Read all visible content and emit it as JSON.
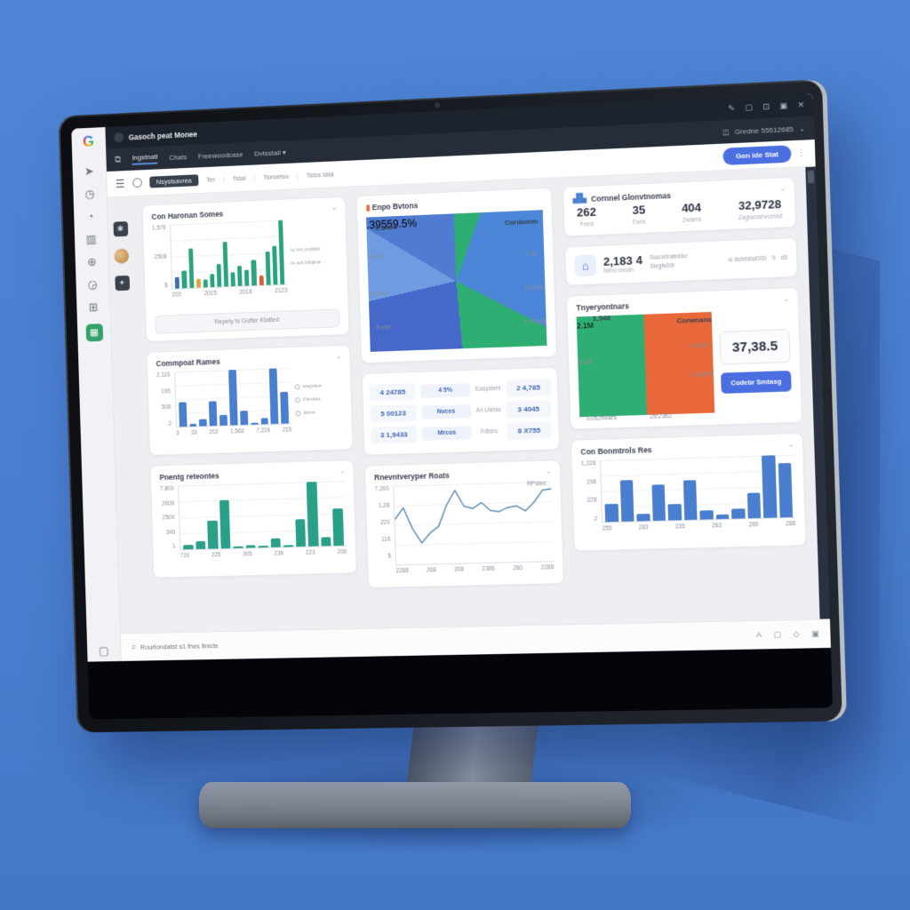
{
  "window": {
    "controls": [
      "✎",
      "▢",
      "⊡",
      "▣",
      "✕"
    ]
  },
  "browser": {
    "tab_title": "Gasoch peat Monee",
    "menu": {
      "items": [
        "Ingstnatl",
        "Chats",
        "Freewoodcase",
        "Dvtsstall ▾"
      ],
      "profile": "Gredne 55512685",
      "profile_icon": "◫"
    },
    "toolbar": {
      "breadcrumb": "Nsystsavrea",
      "links": [
        "Ter",
        "Tstal",
        "Tsesetsu",
        "Tstss tata"
      ],
      "start_button": "Gon ide Stat"
    }
  },
  "colors": {
    "background_blue": "#4a7fd0",
    "accent_blue": "#4a7fd0",
    "teal_green": "#2aa37f",
    "orange": "#e8683a",
    "yellow": "#d8a83f",
    "button_blue": "#4b6fe0",
    "chrome_dark": "#262d39",
    "active_sidebar_green": "#34a06a"
  },
  "stats_card": {
    "title": "Cornnel Glonvtnomas",
    "items": [
      {
        "value": "262",
        "label": "Feed"
      },
      {
        "value": "35",
        "label": "Fans"
      },
      {
        "value": "404",
        "label": "Zwams"
      },
      {
        "value": "32,9728",
        "label": "Zagtamahvcetad"
      }
    ]
  },
  "house_card": {
    "value": "2,183 4",
    "sub": "Neru veuan",
    "line1": "Susoktrafetdur",
    "line2": "Slegfe00t",
    "right": "w dsfetstat000",
    "right_icons": [
      "9",
      "d6"
    ]
  },
  "list_card": {
    "rows": [
      {
        "left": "4 24785",
        "chip": "4 5%",
        "mid": "Easystent",
        "right": "2 4,785"
      },
      {
        "left": "5 00123",
        "chip": "Nvces",
        "mid": "An Utelss",
        "right": "3 4045"
      },
      {
        "left": "3 1,9433",
        "chip": "Mrcos",
        "mid": "Fdtshs",
        "right": "8 X755"
      }
    ]
  },
  "tny_card": {
    "box_value": "37,38.5",
    "button": "Codebr Smtasg",
    "labels_left": [
      "1,548",
      "5938",
      "E0s2tMars"
    ],
    "label_bottom": "2s/2362",
    "labels_right": [
      "Corwnans",
      "7,62a2",
      "0,s0469"
    ]
  },
  "revenue_card": {
    "button": "Repety ts Gutter Ktatted"
  },
  "bottom_bar": {
    "search_placeholder": "Rourtondatst s1 thes finicte",
    "icons": [
      "A",
      "▢",
      "◇",
      "▣"
    ]
  },
  "chart_data": [
    {
      "id": "revenue_bars",
      "type": "bar",
      "title": "Con Haronan Somes",
      "values": [
        18,
        28,
        62,
        14,
        12,
        20,
        35,
        70,
        22,
        32,
        25,
        40,
        15,
        52,
        60,
        100
      ],
      "colors": [
        "#3f6cae",
        "#2aa37f",
        "#2aa37f",
        "#d8a83f",
        "#2aa37f",
        "#2aa37f",
        "#2aa37f",
        "#2aa37f",
        "#2aa37f",
        "#2aa37f",
        "#2aa37f",
        "#2aa37f",
        "#d2603a",
        "#2aa37f",
        "#2aa37f",
        "#2aa37f"
      ],
      "yticks": [
        "1,578",
        "2508",
        "$"
      ],
      "xticks": [
        "200",
        "2015",
        "2018",
        "2123"
      ],
      "legend": [
        "to ins yndtatt",
        "ts ant bltqtna"
      ],
      "legend_style": "plain"
    },
    {
      "id": "enpo_donut",
      "type": "donut",
      "title": "Enpo Bvtons",
      "slices": [
        {
          "value": 6,
          "color": "#2fae74"
        },
        {
          "value": 27,
          "color": "#4b86d8"
        },
        {
          "value": 16,
          "color": "#2fae74"
        },
        {
          "value": 23,
          "color": "#4668c9"
        },
        {
          "value": 12,
          "color": "#6f9be0"
        },
        {
          "value": 16,
          "color": "#4f7bd0"
        }
      ],
      "center": [
        ".395",
        "59.5%"
      ],
      "labels_left": [
        "2.8464",
        "1949",
        "2,6900",
        "Fund"
      ],
      "labels_right": [
        "Cordamm",
        "7.49",
        "0/1609",
        "1,06285"
      ]
    },
    {
      "id": "commpoat_bars",
      "type": "bar",
      "title": "Commpoat Rames",
      "color": "#4a7fd0",
      "values": [
        30,
        3,
        9,
        30,
        13,
        67,
        17,
        2,
        7,
        67,
        38
      ],
      "yticks": [
        "2,115",
        "195",
        "508",
        "2"
      ],
      "xticks": [
        "3",
        "33",
        "202",
        "1,566",
        "7,226",
        "215"
      ],
      "legend": [
        "wsgstee",
        "Fterstrs",
        "dstvs"
      ]
    },
    {
      "id": "pnentg_bars",
      "type": "bar",
      "title": "Pnentg reteontes",
      "color": "#2aa089",
      "values": [
        6,
        12,
        42,
        72,
        3,
        4,
        3,
        13,
        3,
        40,
        95,
        13,
        55
      ],
      "yticks": [
        "7,800",
        "2606",
        "2500",
        "346",
        "1"
      ],
      "xticks": [
        "720",
        "225",
        "305",
        "236",
        "223",
        "206"
      ]
    },
    {
      "id": "line_chart",
      "type": "line",
      "title": "Rnevntveryper Roats",
      "color": "#5f8fb4",
      "values": [
        130,
        165,
        100,
        55,
        85,
        105,
        170,
        215,
        165,
        158,
        175,
        150,
        146,
        158,
        162,
        146,
        172,
        208,
        212
      ],
      "yticks": [
        "7,260",
        "1,28",
        "220",
        "116",
        "$"
      ],
      "xticks": [
        "2288",
        "268",
        "208",
        "2386",
        "260",
        "2288"
      ],
      "annotation": "RPsted"
    },
    {
      "id": "tny_donut",
      "type": "donut",
      "title": "Tnyeryontnars",
      "slices": [
        {
          "value": 50,
          "color": "#e8683a"
        },
        {
          "value": 50,
          "color": "#2fae74"
        }
      ],
      "center": [
        "2.1M"
      ]
    },
    {
      "id": "con_bars",
      "type": "bar",
      "title": "Con Bonmtrols Res",
      "color": "#4a7fd0",
      "values": [
        26,
        60,
        11,
        52,
        24,
        58,
        13,
        7,
        15,
        36,
        90,
        78
      ],
      "yticks": [
        "1,228",
        "196",
        "228",
        "2"
      ],
      "xticks": [
        "255",
        "283",
        "235",
        "283",
        "280",
        "288"
      ]
    }
  ]
}
